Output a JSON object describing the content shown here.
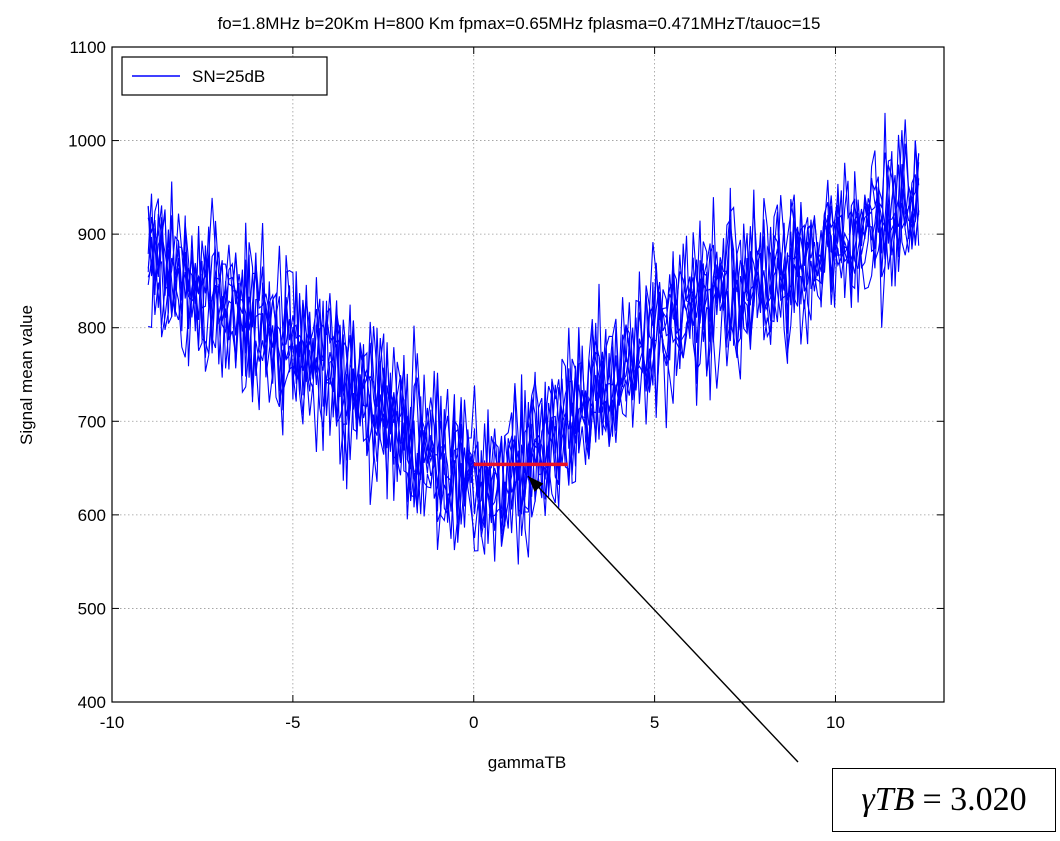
{
  "chart_data": {
    "type": "line",
    "title": "fo=1.8MHz b=20Km H=800 Km fpmax=0.65MHz fplasma=0.471MHzT/tauoc=15",
    "xlabel": "gammaTB",
    "ylabel": "Signal mean value",
    "xlim": [
      -10,
      13
    ],
    "ylim": [
      400,
      1100
    ],
    "xticks": [
      -10,
      -5,
      0,
      5,
      10
    ],
    "xtick_labels": [
      "-10",
      "-5",
      "0",
      "5",
      "10"
    ],
    "yticks": [
      400,
      500,
      600,
      700,
      800,
      900,
      1000,
      1100
    ],
    "ytick_labels": [
      "400",
      "500",
      "600",
      "700",
      "800",
      "900",
      "1000",
      "1100"
    ],
    "grid": true,
    "legend": {
      "position": "top-left",
      "entries": [
        "SN=25dB"
      ]
    },
    "series": [
      {
        "name": "SN=25dB",
        "color": "#0000ff",
        "x_range": [
          -9,
          12.3
        ],
        "trend_x": [
          -9,
          -7,
          -5,
          -3,
          -1,
          0,
          1,
          3,
          5,
          7,
          9,
          11,
          12.3
        ],
        "trend_y": [
          875,
          830,
          790,
          720,
          660,
          635,
          645,
          710,
          790,
          840,
          870,
          905,
          925
        ],
        "noise_amplitude_min": 600,
        "noise_amplitude_max": 1050
      }
    ],
    "marker_segment": {
      "color": "#e8102a",
      "x": [
        0,
        2.6
      ],
      "y": [
        654,
        654
      ]
    },
    "annotation": {
      "label_var": "γTB",
      "label_value": "= 3.020",
      "points_to": [
        1.5,
        650
      ]
    }
  }
}
